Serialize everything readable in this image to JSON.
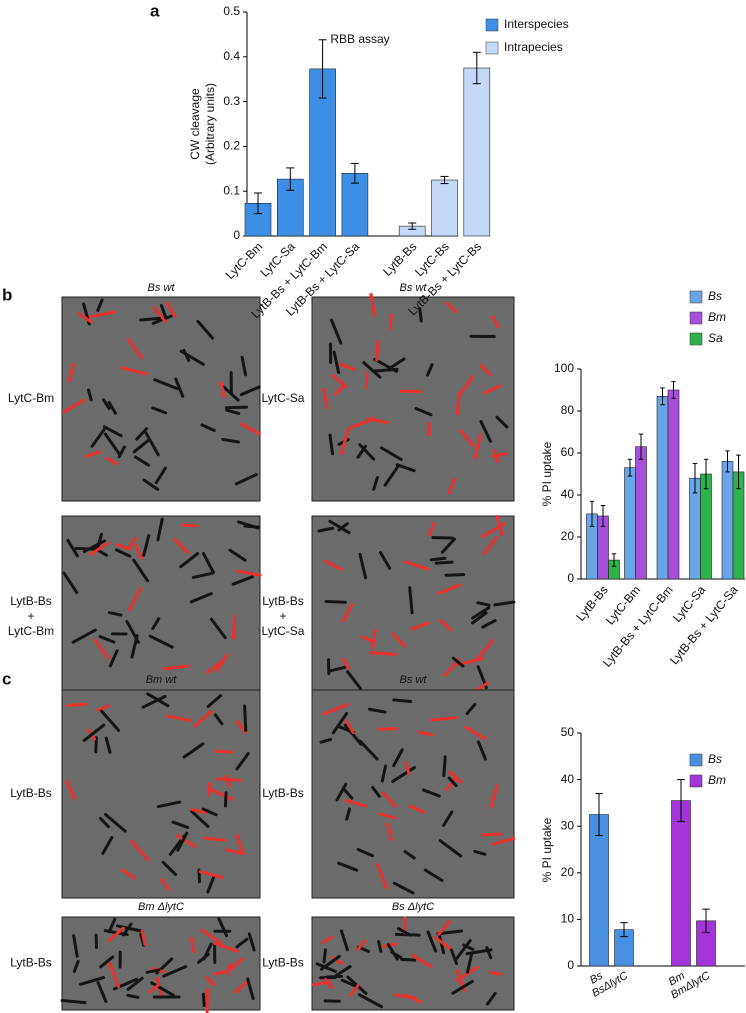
{
  "panel_labels": [
    "a",
    "b",
    "c"
  ],
  "micrographs": [
    {
      "title": "Bs wt",
      "label": [
        "LytC-Bm"
      ]
    },
    {
      "title": "Bs wt",
      "label": [
        "LytC-Sa"
      ]
    },
    {
      "label": [
        "LytB-Bs",
        "+",
        "LytC-Bm"
      ]
    },
    {
      "label": [
        "LytB-Bs",
        "+",
        "LytC-Sa"
      ]
    },
    {
      "title": "Bm wt",
      "label": [
        "LytB-Bs"
      ]
    },
    {
      "title": "Bs wt",
      "label": [
        "LytB-Bs"
      ]
    },
    {
      "title": "Bm ΔlytC",
      "label": [
        "LytB-Bs"
      ]
    },
    {
      "title": "Bs ΔlytC",
      "label": [
        "LytB-Bs"
      ]
    }
  ],
  "chart_data": [
    {
      "type": "bar",
      "annotation": "RBB assay",
      "y_label": [
        "CW cleavage",
        "(Arbitrary units)"
      ],
      "categories": [
        "LytC-Bm",
        "LytC-Sa",
        "LytB-Bs + LytC-Bm",
        "LytB-Bs + LytC-Sa",
        "LytB-Bs",
        "LytC-Bs",
        "LytB-Bs + LytC-Bs"
      ],
      "series": [
        {
          "name": "Interspecies",
          "color": "#3d8fe6",
          "values": [
            0.073,
            0.127,
            0.373,
            0.14,
            null,
            null,
            null
          ],
          "errors": [
            0.023,
            0.025,
            0.065,
            0.022,
            null,
            null,
            null
          ]
        },
        {
          "name": "Intrapecies",
          "color": "#c3d9f7",
          "values": [
            null,
            null,
            null,
            null,
            0.022,
            0.125,
            0.375
          ],
          "errors": [
            null,
            null,
            null,
            null,
            0.007,
            0.008,
            0.035
          ]
        }
      ],
      "ylim": [
        0,
        0.5
      ],
      "yticks": [
        0,
        0.1,
        0.2,
        0.3,
        0.4,
        0.5
      ]
    },
    {
      "type": "bar",
      "y_label": [
        "% PI uptake"
      ],
      "categories": [
        "LytB-Bs",
        "LytC-Bm",
        "LytB-Bs + LytC-Bm",
        "LytC-Sa",
        "LytB-Bs + LytC-Sa"
      ],
      "series": [
        {
          "name": "Bs",
          "color": "#6aa6e6",
          "values": [
            31,
            53,
            87,
            48,
            56
          ],
          "errors": [
            6,
            4,
            4,
            7,
            5
          ]
        },
        {
          "name": "Bm",
          "color": "#a64fd9",
          "values": [
            30,
            63,
            90,
            null,
            null
          ],
          "errors": [
            5,
            6,
            4,
            null,
            null
          ]
        },
        {
          "name": "Sa",
          "color": "#2db34a",
          "values": [
            9,
            null,
            null,
            50,
            51
          ],
          "errors": [
            3,
            null,
            null,
            7,
            8
          ]
        }
      ],
      "ylim": [
        0,
        100
      ],
      "yticks": [
        0,
        20,
        40,
        60,
        80,
        100
      ]
    },
    {
      "type": "bar",
      "y_label": [
        "% PI uptake"
      ],
      "categories": [
        "Bs",
        "BsΔlytC",
        "Bm",
        "BmΔlytC"
      ],
      "series": [
        {
          "name": "Bs",
          "color": "#4a90e2",
          "values": [
            32.5,
            7.8,
            null,
            null
          ],
          "errors": [
            4.5,
            1.5,
            null,
            null
          ]
        },
        {
          "name": "Bm",
          "color": "#a335d8",
          "values": [
            null,
            null,
            35.5,
            9.7
          ],
          "errors": [
            null,
            null,
            4.5,
            2.5
          ]
        }
      ],
      "ylim": [
        0,
        50
      ],
      "yticks": [
        0,
        10,
        20,
        30,
        40,
        50
      ]
    }
  ]
}
